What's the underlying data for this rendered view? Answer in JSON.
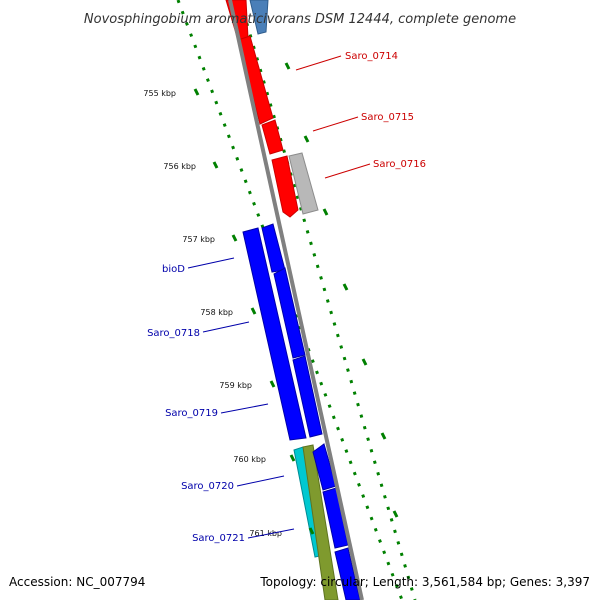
{
  "title": "Novosphingobium aromaticivorans DSM 12444, complete genome",
  "footer": {
    "accession": "Accession: NC_007794",
    "topology": "Topology: circular; Length: 3,561,584 bp; Genes: 3,397"
  },
  "colors": {
    "forward_red": "#ff0000",
    "gray_gene": "#b8b8b8",
    "blue_gene": "#0000ff",
    "cyan_gene": "#00c8d0",
    "olive_gene": "#7f9a2e",
    "steel_gene": "#4a7fb8",
    "backbone": "#808080",
    "tick": "#008000",
    "label_red": "#cc0000",
    "label_blue": "#0000aa"
  },
  "ticks": [
    {
      "label": "755 kbp"
    },
    {
      "label": "756 kbp"
    },
    {
      "label": "757 kbp"
    },
    {
      "label": "758 kbp"
    },
    {
      "label": "759 kbp"
    },
    {
      "label": "760 kbp"
    },
    {
      "label": "761 kbp"
    }
  ],
  "gene_labels": [
    {
      "text": "Saro_0714",
      "color": "#cc0000"
    },
    {
      "text": "Saro_0715",
      "color": "#cc0000"
    },
    {
      "text": "Saro_0716",
      "color": "#cc0000"
    },
    {
      "text": "bioD",
      "color": "#0000aa"
    },
    {
      "text": "Saro_0718",
      "color": "#0000aa"
    },
    {
      "text": "Saro_0719",
      "color": "#0000aa"
    },
    {
      "text": "Saro_0720",
      "color": "#0000aa"
    },
    {
      "text": "Saro_0721",
      "color": "#0000aa"
    }
  ]
}
